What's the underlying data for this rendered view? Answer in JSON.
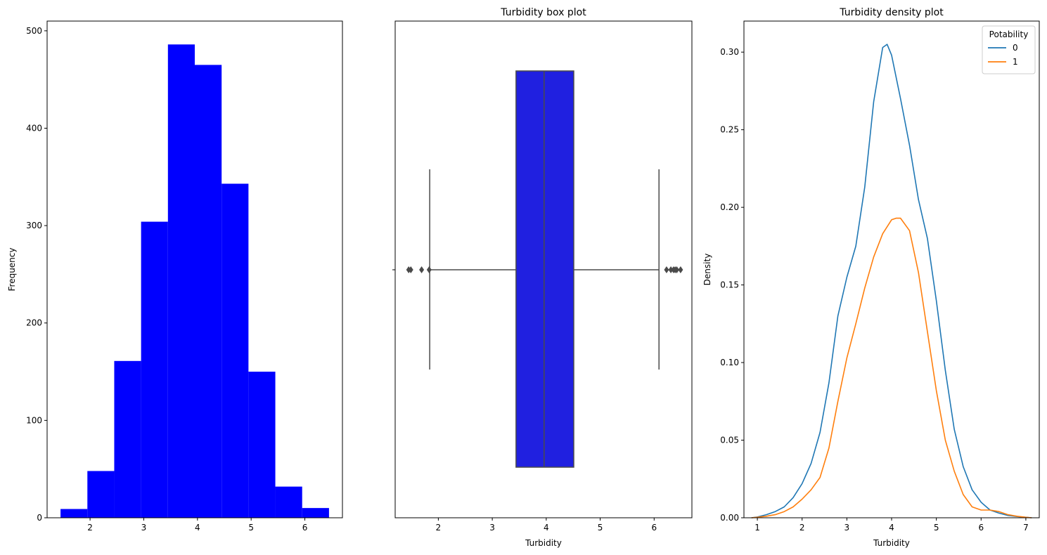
{
  "chart_data": [
    {
      "type": "bar",
      "kind": "histogram",
      "title": "",
      "xlabel": "",
      "ylabel": "Frequency",
      "bin_edges": [
        1.45,
        1.95,
        2.45,
        2.95,
        3.45,
        3.95,
        4.45,
        4.95,
        5.45,
        5.95,
        6.45
      ],
      "values": [
        9,
        48,
        161,
        304,
        486,
        465,
        343,
        150,
        32,
        10
      ],
      "color": "#0000ff",
      "xlim": [
        1.2,
        6.7
      ],
      "ylim": [
        0,
        510
      ],
      "xticks": [
        2,
        3,
        4,
        5,
        6
      ],
      "yticks": [
        0,
        100,
        200,
        300,
        400,
        500
      ]
    },
    {
      "type": "box",
      "title": "Turbidity box plot",
      "xlabel": "Turbidity",
      "ylabel": "",
      "q1": 3.44,
      "median": 3.96,
      "q3": 4.51,
      "whisker_low": 1.84,
      "whisker_high": 6.09,
      "outliers": [
        1.45,
        1.49,
        1.69,
        1.83,
        6.23,
        6.31,
        6.36,
        6.39,
        6.42,
        6.49
      ],
      "box_color": "#2020e0",
      "line_color": "#4a4a4a",
      "xlim": [
        1.2,
        6.7
      ],
      "xticks": [
        2,
        3,
        4,
        5,
        6
      ]
    },
    {
      "type": "line",
      "kind": "density",
      "title": "Turbidity density plot",
      "xlabel": "Turbidity",
      "ylabel": "Density",
      "xlim": [
        0.7,
        7.3
      ],
      "ylim": [
        0,
        0.32
      ],
      "xticks": [
        1,
        2,
        3,
        4,
        5,
        6,
        7
      ],
      "yticks": [
        0.0,
        0.05,
        0.1,
        0.15,
        0.2,
        0.25,
        0.3
      ],
      "legend": {
        "title": "Potability",
        "placement": "top-right"
      },
      "series": [
        {
          "name": "0",
          "color": "#1f77b4",
          "x": [
            0.87,
            1.0,
            1.2,
            1.4,
            1.6,
            1.8,
            2.0,
            2.2,
            2.4,
            2.6,
            2.8,
            3.0,
            3.2,
            3.4,
            3.6,
            3.8,
            3.9,
            4.0,
            4.2,
            4.4,
            4.6,
            4.8,
            5.0,
            5.2,
            5.4,
            5.6,
            5.8,
            6.0,
            6.2,
            6.4,
            6.6,
            6.8,
            7.0,
            7.13
          ],
          "y": [
            0.0,
            0.0005,
            0.002,
            0.004,
            0.007,
            0.013,
            0.022,
            0.035,
            0.055,
            0.087,
            0.13,
            0.155,
            0.175,
            0.213,
            0.268,
            0.303,
            0.305,
            0.298,
            0.27,
            0.24,
            0.205,
            0.18,
            0.14,
            0.095,
            0.057,
            0.033,
            0.018,
            0.01,
            0.005,
            0.003,
            0.0015,
            0.0008,
            0.0003,
            0.0
          ]
        },
        {
          "name": "1",
          "color": "#ff7f0e",
          "x": [
            0.87,
            1.0,
            1.2,
            1.4,
            1.6,
            1.8,
            2.0,
            2.2,
            2.4,
            2.6,
            2.8,
            3.0,
            3.2,
            3.4,
            3.6,
            3.8,
            4.0,
            4.1,
            4.2,
            4.4,
            4.6,
            4.8,
            5.0,
            5.2,
            5.4,
            5.6,
            5.8,
            6.0,
            6.2,
            6.4,
            6.6,
            6.8,
            7.0,
            7.13
          ],
          "y": [
            0.0,
            0.0003,
            0.001,
            0.002,
            0.004,
            0.007,
            0.012,
            0.018,
            0.026,
            0.045,
            0.075,
            0.103,
            0.125,
            0.148,
            0.168,
            0.183,
            0.192,
            0.193,
            0.193,
            0.185,
            0.158,
            0.12,
            0.082,
            0.05,
            0.03,
            0.015,
            0.007,
            0.005,
            0.005,
            0.004,
            0.002,
            0.001,
            0.0003,
            0.0
          ]
        }
      ]
    }
  ]
}
